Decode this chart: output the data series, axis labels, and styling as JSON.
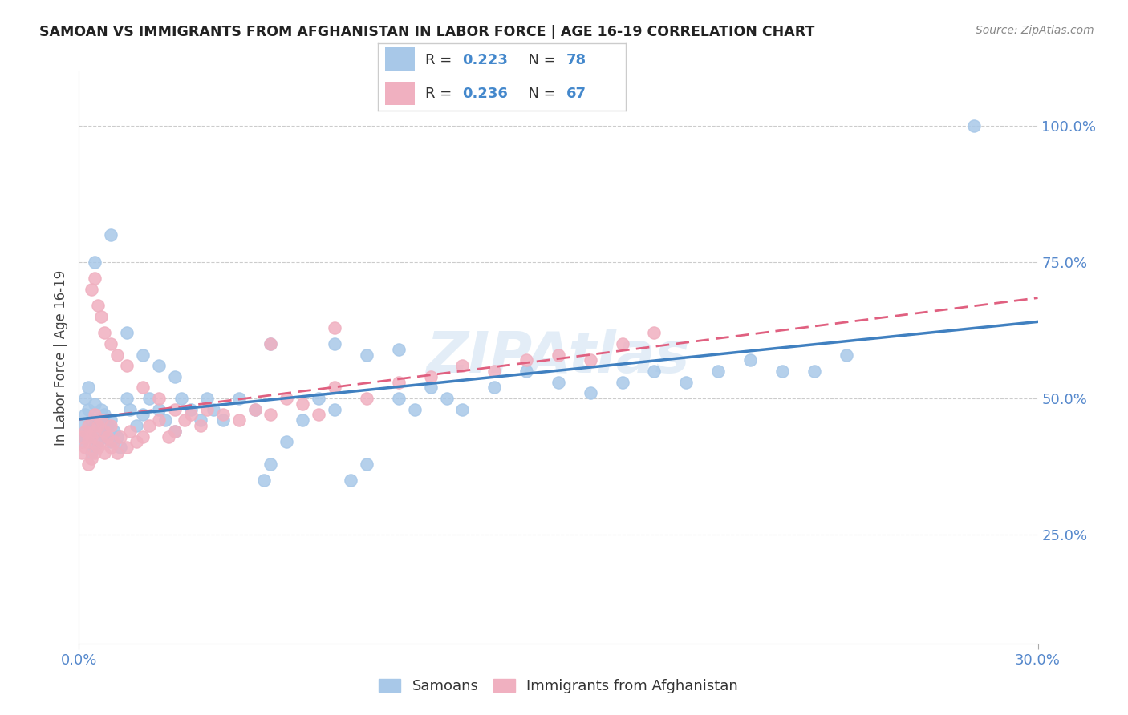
{
  "title": "SAMOAN VS IMMIGRANTS FROM AFGHANISTAN IN LABOR FORCE | AGE 16-19 CORRELATION CHART",
  "source": "Source: ZipAtlas.com",
  "ylabel": "In Labor Force | Age 16-19",
  "samoans_R": "0.223",
  "samoans_N": "78",
  "afghan_R": "0.236",
  "afghan_N": "67",
  "blue_color": "#a8c8e8",
  "pink_color": "#f0b0c0",
  "blue_line_color": "#4080c0",
  "pink_line_color": "#e06080",
  "xlim": [
    0.0,
    0.3
  ],
  "ylim": [
    0.05,
    1.1
  ],
  "ytick_positions": [
    0.25,
    0.5,
    0.75,
    1.0
  ],
  "ytick_labels": [
    "25.0%",
    "50.0%",
    "75.0%",
    "100.0%"
  ],
  "xtick_positions": [
    0.0,
    0.3
  ],
  "xtick_labels": [
    "0.0%",
    "30.0%"
  ],
  "watermark": "ZIPAtlas",
  "legend_label_blue": "Samoans",
  "legend_label_pink": "Immigrants from Afghanistan",
  "samoans_x": [
    0.001,
    0.001,
    0.002,
    0.002,
    0.002,
    0.003,
    0.003,
    0.003,
    0.004,
    0.004,
    0.004,
    0.005,
    0.005,
    0.005,
    0.006,
    0.006,
    0.007,
    0.007,
    0.008,
    0.008,
    0.009,
    0.01,
    0.01,
    0.011,
    0.012,
    0.013,
    0.015,
    0.016,
    0.018,
    0.02,
    0.022,
    0.025,
    0.027,
    0.03,
    0.032,
    0.035,
    0.038,
    0.04,
    0.042,
    0.045,
    0.05,
    0.055,
    0.058,
    0.06,
    0.065,
    0.07,
    0.075,
    0.08,
    0.085,
    0.09,
    0.1,
    0.105,
    0.11,
    0.115,
    0.12,
    0.13,
    0.14,
    0.15,
    0.16,
    0.17,
    0.18,
    0.19,
    0.2,
    0.21,
    0.22,
    0.23,
    0.24,
    0.005,
    0.01,
    0.015,
    0.02,
    0.025,
    0.03,
    0.06,
    0.08,
    0.09,
    0.1,
    0.28
  ],
  "samoans_y": [
    0.42,
    0.45,
    0.43,
    0.47,
    0.5,
    0.44,
    0.48,
    0.52,
    0.4,
    0.43,
    0.46,
    0.41,
    0.45,
    0.49,
    0.42,
    0.46,
    0.44,
    0.48,
    0.43,
    0.47,
    0.45,
    0.42,
    0.46,
    0.44,
    0.43,
    0.41,
    0.5,
    0.48,
    0.45,
    0.47,
    0.5,
    0.48,
    0.46,
    0.44,
    0.5,
    0.48,
    0.46,
    0.5,
    0.48,
    0.46,
    0.5,
    0.48,
    0.35,
    0.38,
    0.42,
    0.46,
    0.5,
    0.48,
    0.35,
    0.38,
    0.5,
    0.48,
    0.52,
    0.5,
    0.48,
    0.52,
    0.55,
    0.53,
    0.51,
    0.53,
    0.55,
    0.53,
    0.55,
    0.57,
    0.55,
    0.55,
    0.58,
    0.75,
    0.8,
    0.62,
    0.58,
    0.56,
    0.54,
    0.6,
    0.6,
    0.58,
    0.59,
    1.0
  ],
  "afghan_x": [
    0.001,
    0.001,
    0.002,
    0.002,
    0.003,
    0.003,
    0.003,
    0.004,
    0.004,
    0.005,
    0.005,
    0.005,
    0.006,
    0.006,
    0.007,
    0.007,
    0.008,
    0.008,
    0.009,
    0.01,
    0.01,
    0.011,
    0.012,
    0.013,
    0.015,
    0.016,
    0.018,
    0.02,
    0.022,
    0.025,
    0.028,
    0.03,
    0.033,
    0.035,
    0.038,
    0.04,
    0.045,
    0.05,
    0.055,
    0.06,
    0.065,
    0.07,
    0.075,
    0.08,
    0.09,
    0.1,
    0.11,
    0.12,
    0.13,
    0.14,
    0.15,
    0.16,
    0.17,
    0.18,
    0.004,
    0.005,
    0.006,
    0.007,
    0.008,
    0.01,
    0.012,
    0.015,
    0.02,
    0.025,
    0.03,
    0.06,
    0.08
  ],
  "afghan_y": [
    0.4,
    0.43,
    0.41,
    0.44,
    0.38,
    0.42,
    0.45,
    0.39,
    0.43,
    0.4,
    0.44,
    0.47,
    0.41,
    0.45,
    0.42,
    0.46,
    0.4,
    0.44,
    0.43,
    0.41,
    0.45,
    0.42,
    0.4,
    0.43,
    0.41,
    0.44,
    0.42,
    0.43,
    0.45,
    0.46,
    0.43,
    0.44,
    0.46,
    0.47,
    0.45,
    0.48,
    0.47,
    0.46,
    0.48,
    0.47,
    0.5,
    0.49,
    0.47,
    0.52,
    0.5,
    0.53,
    0.54,
    0.56,
    0.55,
    0.57,
    0.58,
    0.57,
    0.6,
    0.62,
    0.7,
    0.72,
    0.67,
    0.65,
    0.62,
    0.6,
    0.58,
    0.56,
    0.52,
    0.5,
    0.48,
    0.6,
    0.63
  ]
}
